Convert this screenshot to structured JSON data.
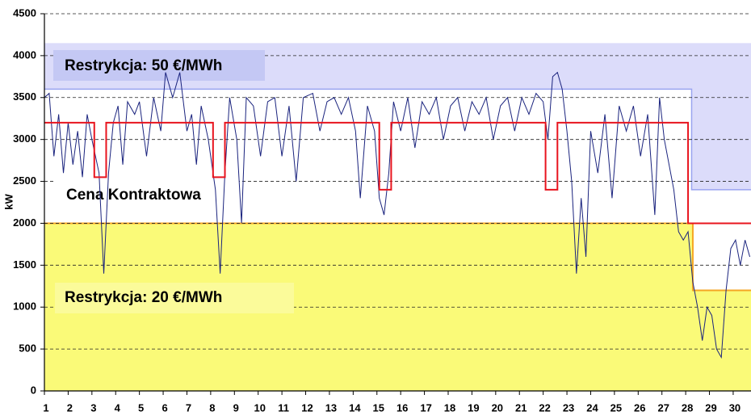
{
  "chart_data": {
    "type": "line",
    "y_label": "kW",
    "xlim": [
      1,
      30.75
    ],
    "xticks": [
      1,
      2,
      3,
      4,
      5,
      6,
      7,
      8,
      9,
      10,
      11,
      12,
      13,
      14,
      15,
      16,
      17,
      18,
      19,
      20,
      21,
      22,
      23,
      24,
      25,
      26,
      27,
      28,
      29,
      30
    ],
    "ylim": [
      0,
      4500
    ],
    "yticks": [
      0,
      500,
      1000,
      1500,
      2000,
      2500,
      3000,
      3500,
      4000,
      4500
    ],
    "grid": true,
    "regions": [
      {
        "label": "Restrykcja: 50 €/MWh",
        "color": "#dcdcfa",
        "edge_color": "#9aa4f0",
        "x": [
          1,
          28.25,
          28.25,
          30.75
        ],
        "lower": [
          3600,
          3600,
          2400,
          2400
        ],
        "upper": [
          4150,
          4150,
          4150,
          4150
        ]
      },
      {
        "label": "Restrykcja: 20 €/MWh",
        "color": "#fafa78",
        "edge_color": "#f5a623",
        "x": [
          1,
          28.3,
          28.3,
          30.75
        ],
        "lower": [
          0,
          0,
          0,
          0
        ],
        "upper": [
          2000,
          2000,
          1200,
          1200
        ]
      }
    ],
    "series": [
      {
        "color": "#1a237e",
        "x": [
          1.0,
          1.2,
          1.4,
          1.6,
          1.8,
          2.0,
          2.2,
          2.4,
          2.6,
          2.8,
          3.0,
          3.3,
          3.5,
          3.7,
          3.9,
          4.1,
          4.3,
          4.5,
          4.8,
          5.0,
          5.3,
          5.6,
          5.9,
          6.1,
          6.4,
          6.7,
          7.0,
          7.2,
          7.4,
          7.6,
          7.9,
          8.2,
          8.4,
          8.6,
          8.8,
          9.1,
          9.3,
          9.5,
          9.8,
          10.1,
          10.4,
          10.7,
          11.0,
          11.3,
          11.6,
          11.9,
          12.3,
          12.6,
          12.9,
          13.2,
          13.5,
          13.8,
          14.1,
          14.3,
          14.6,
          14.9,
          15.1,
          15.3,
          15.5,
          15.7,
          16.0,
          16.3,
          16.6,
          16.9,
          17.2,
          17.5,
          17.8,
          18.1,
          18.4,
          18.7,
          19.0,
          19.3,
          19.6,
          19.9,
          20.2,
          20.5,
          20.8,
          21.1,
          21.4,
          21.7,
          22.0,
          22.2,
          22.4,
          22.6,
          22.8,
          23.0,
          23.2,
          23.4,
          23.6,
          23.8,
          24.0,
          24.3,
          24.6,
          24.9,
          25.2,
          25.5,
          25.8,
          26.1,
          26.4,
          26.7,
          26.9,
          27.1,
          27.3,
          27.5,
          27.7,
          27.9,
          28.1,
          28.3,
          28.5,
          28.7,
          28.9,
          29.1,
          29.3,
          29.5,
          29.7,
          29.9,
          30.1,
          30.3,
          30.5,
          30.7
        ],
        "values": [
          3500,
          3550,
          2800,
          3300,
          2600,
          3200,
          2700,
          3100,
          2550,
          3300,
          3000,
          2600,
          1400,
          2600,
          3200,
          3400,
          2700,
          3450,
          3300,
          3450,
          2800,
          3500,
          3100,
          3800,
          3500,
          3800,
          3100,
          3300,
          2700,
          3400,
          3000,
          2400,
          1400,
          2600,
          3500,
          3000,
          2000,
          3500,
          3400,
          2800,
          3450,
          3500,
          2800,
          3400,
          2500,
          3500,
          3550,
          3100,
          3450,
          3500,
          3300,
          3500,
          3100,
          2300,
          3400,
          3100,
          2300,
          2100,
          2600,
          3450,
          3100,
          3500,
          2900,
          3450,
          3300,
          3500,
          3000,
          3400,
          3500,
          3100,
          3450,
          3300,
          3500,
          3000,
          3400,
          3500,
          3100,
          3500,
          3300,
          3550,
          3450,
          3000,
          3750,
          3800,
          3600,
          3100,
          2500,
          1400,
          2300,
          1600,
          3100,
          2600,
          3300,
          2300,
          3400,
          3100,
          3400,
          2800,
          3300,
          2100,
          3500,
          3000,
          2700,
          2400,
          1900,
          1800,
          1900,
          1300,
          1000,
          600,
          1000,
          900,
          500,
          400,
          1200,
          1700,
          1800,
          1500,
          1800,
          1600
        ]
      },
      {
        "name": "Cena Kontraktowa",
        "color": "#e8141e",
        "x": [
          1,
          3.1,
          3.1,
          3.6,
          3.6,
          8.1,
          8.1,
          8.6,
          8.6,
          15.1,
          15.1,
          15.6,
          15.6,
          22.1,
          22.1,
          22.6,
          22.6,
          28.1,
          28.1,
          30.75
        ],
        "values": [
          3200,
          3200,
          2550,
          2550,
          3200,
          3200,
          2550,
          2550,
          3200,
          3200,
          2400,
          2400,
          3200,
          3200,
          2400,
          2400,
          3200,
          3200,
          2000,
          2000
        ]
      }
    ]
  }
}
